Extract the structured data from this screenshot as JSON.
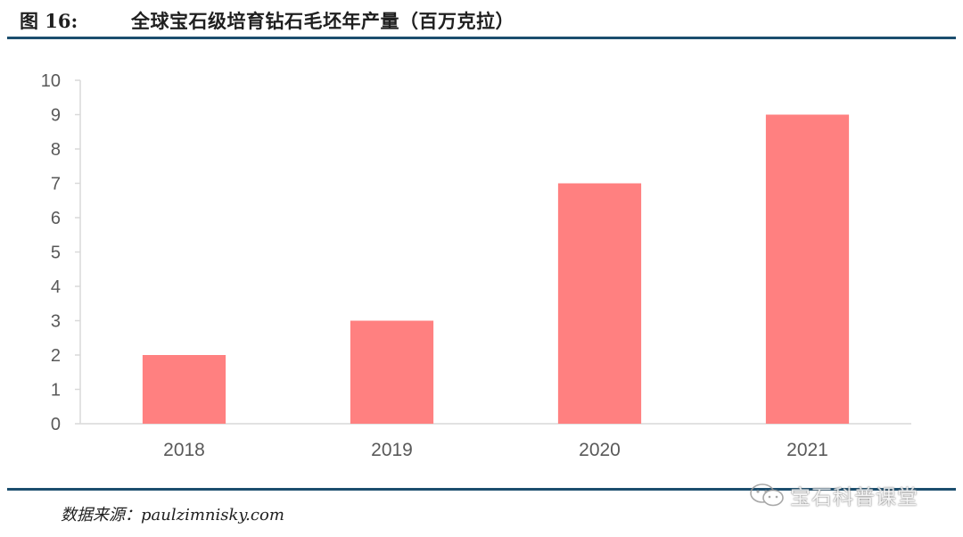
{
  "figure": {
    "number": "图 16:",
    "title": "全球宝石级培育钻石毛坯年产量（百万克拉）"
  },
  "source": "数据来源：paulzimnisky.com",
  "watermark": {
    "text": "宝石科普课堂",
    "icon": "wechat-icon"
  },
  "colors": {
    "bar": "#ff8080",
    "rule": "#1c4e6e",
    "axis": "#d9d9d9",
    "tick_text": "#595959"
  },
  "chart_data": {
    "type": "bar",
    "categories": [
      "2018",
      "2019",
      "2020",
      "2021"
    ],
    "values": [
      2,
      3,
      7,
      9
    ],
    "ylim": [
      0,
      10
    ],
    "yticks": [
      0,
      1,
      2,
      3,
      4,
      5,
      6,
      7,
      8,
      9,
      10
    ],
    "grid": false,
    "legend": "none"
  }
}
